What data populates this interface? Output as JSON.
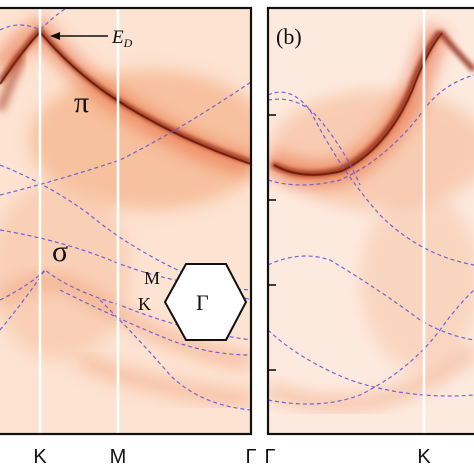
{
  "figure": {
    "left_panel": {
      "band_labels": {
        "pi": "π",
        "sigma": "σ"
      },
      "annotation": {
        "symbol": "E",
        "subscript": "D"
      },
      "bz_labels": {
        "M": "M",
        "K": "K",
        "Gamma": "Γ"
      }
    },
    "right_panel": {
      "panel_label": "(b)"
    },
    "x_axis_labels": [
      "K",
      "M",
      "Γ",
      "Γ",
      "K"
    ],
    "colors": {
      "background": "#ffffff",
      "intensity_light": "#fde6d6",
      "intensity_mid": "#f08a55",
      "intensity_dark": "#6e1705",
      "dashed_lines": "#6a5fd6",
      "markers": "#ffffff"
    }
  }
}
